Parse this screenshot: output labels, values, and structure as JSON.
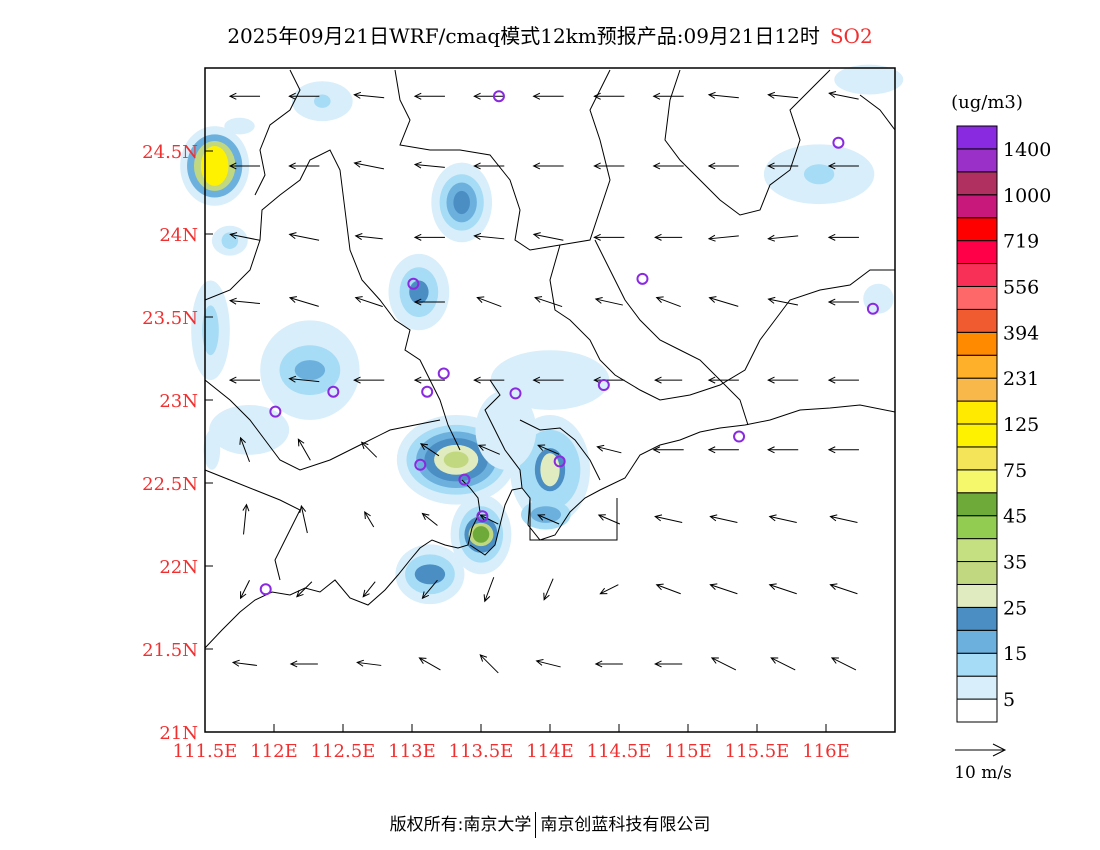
{
  "title": {
    "main": "2025年09月21日WRF/cmaq模式12km预报产品:09月21日12时",
    "species": "SO2"
  },
  "axes": {
    "x_ticks": [
      {
        "lon": 111.5,
        "label": "111.5E"
      },
      {
        "lon": 112,
        "label": "112E"
      },
      {
        "lon": 112.5,
        "label": "112.5E"
      },
      {
        "lon": 113,
        "label": "113E"
      },
      {
        "lon": 113.5,
        "label": "113.5E"
      },
      {
        "lon": 114,
        "label": "114E"
      },
      {
        "lon": 114.5,
        "label": "114.5E"
      },
      {
        "lon": 115,
        "label": "115E"
      },
      {
        "lon": 115.5,
        "label": "115.5E"
      },
      {
        "lon": 116,
        "label": "116E"
      }
    ],
    "y_ticks": [
      {
        "lat": 21,
        "label": "21N"
      },
      {
        "lat": 21.5,
        "label": "21.5N"
      },
      {
        "lat": 22,
        "label": "22N"
      },
      {
        "lat": 22.5,
        "label": "22.5N"
      },
      {
        "lat": 23,
        "label": "23N"
      },
      {
        "lat": 23.5,
        "label": "23.5N"
      },
      {
        "lat": 24,
        "label": "24N"
      },
      {
        "lat": 24.5,
        "label": "24.5N"
      }
    ],
    "lon_range": [
      111.5,
      116.5
    ],
    "lat_range": [
      21,
      25
    ],
    "tick_color": "#f03030"
  },
  "colorbar": {
    "unit": "(ug/m3)",
    "colors": [
      "#ffffff",
      "#d8eefa",
      "#a6dcf5",
      "#6cb0de",
      "#4a8ec4",
      "#e0ebc0",
      "#c2d880",
      "#c4e080",
      "#92cc50",
      "#6eaa3a",
      "#f4f86a",
      "#f4e45a",
      "#fff200",
      "#ffea00",
      "#f8b84a",
      "#ffb02a",
      "#ff8a00",
      "#f05c30",
      "#ff6868",
      "#f83058",
      "#ff0048",
      "#ff0000",
      "#c8187c",
      "#b03060",
      "#9a30c8",
      "#8a2ae0"
    ],
    "labels": [
      "5",
      "15",
      "25",
      "35",
      "45",
      "75",
      "125",
      "231",
      "394",
      "556",
      "719",
      "1000",
      "1400"
    ]
  },
  "wind_legend": {
    "label": "10 m/s"
  },
  "city_color": "#8a2ae0",
  "cities": [
    [
      113.63,
      24.83
    ],
    [
      116.09,
      24.55
    ],
    [
      114.67,
      23.73
    ],
    [
      116.34,
      23.55
    ],
    [
      113.01,
      23.7
    ],
    [
      113.23,
      23.16
    ],
    [
      113.11,
      23.05
    ],
    [
      113.75,
      23.04
    ],
    [
      114.39,
      23.09
    ],
    [
      112.43,
      23.05
    ],
    [
      112.01,
      22.93
    ],
    [
      113.06,
      22.61
    ],
    [
      113.38,
      22.52
    ],
    [
      114.07,
      22.63
    ],
    [
      113.51,
      22.3
    ],
    [
      115.37,
      22.78
    ],
    [
      111.94,
      21.86
    ]
  ],
  "so2_field": [
    {
      "lon": 111.57,
      "lat": 24.41,
      "levels": [
        [
          0.25,
          0.24,
          1
        ],
        [
          0.2,
          0.19,
          3
        ],
        [
          0.15,
          0.15,
          6
        ],
        [
          0.1,
          0.12,
          12
        ]
      ]
    },
    {
      "lon": 113.36,
      "lat": 24.19,
      "levels": [
        [
          0.22,
          0.24,
          1
        ],
        [
          0.16,
          0.17,
          2
        ],
        [
          0.11,
          0.12,
          3
        ],
        [
          0.06,
          0.07,
          4
        ]
      ]
    },
    {
      "lon": 113.05,
      "lat": 23.65,
      "levels": [
        [
          0.22,
          0.23,
          1
        ],
        [
          0.14,
          0.15,
          2
        ],
        [
          0.07,
          0.07,
          4
        ]
      ]
    },
    {
      "lon": 112.26,
      "lat": 23.18,
      "levels": [
        [
          0.36,
          0.3,
          1
        ],
        [
          0.22,
          0.15,
          2
        ],
        [
          0.11,
          0.06,
          3
        ]
      ]
    },
    {
      "lon": 113.32,
      "lat": 22.64,
      "levels": [
        [
          0.43,
          0.27,
          1
        ],
        [
          0.36,
          0.21,
          2
        ],
        [
          0.29,
          0.17,
          3
        ],
        [
          0.23,
          0.13,
          4
        ],
        [
          0.16,
          0.09,
          5
        ],
        [
          0.09,
          0.05,
          6
        ]
      ]
    },
    {
      "lon": 113.5,
      "lat": 22.19,
      "levels": [
        [
          0.22,
          0.24,
          1
        ],
        [
          0.16,
          0.17,
          2
        ],
        [
          0.12,
          0.11,
          4
        ],
        [
          0.09,
          0.07,
          6
        ],
        [
          0.06,
          0.05,
          9
        ]
      ]
    },
    {
      "lon": 114.0,
      "lat": 22.58,
      "levels": [
        [
          0.29,
          0.33,
          1
        ],
        [
          0.22,
          0.24,
          2
        ],
        [
          0.11,
          0.13,
          4
        ],
        [
          0.07,
          0.1,
          5
        ]
      ]
    },
    {
      "lon": 113.97,
      "lat": 22.31,
      "levels": [
        [
          0.18,
          0.09,
          2
        ],
        [
          0.11,
          0.05,
          3
        ]
      ]
    },
    {
      "lon": 113.13,
      "lat": 21.95,
      "levels": [
        [
          0.25,
          0.18,
          1
        ],
        [
          0.18,
          0.12,
          2
        ],
        [
          0.11,
          0.06,
          4
        ]
      ]
    },
    {
      "lon": 112.35,
      "lat": 24.8,
      "levels": [
        [
          0.22,
          0.12,
          1
        ],
        [
          0.06,
          0.04,
          2
        ]
      ]
    },
    {
      "lon": 111.75,
      "lat": 24.65,
      "levels": [
        [
          0.11,
          0.05,
          1
        ]
      ]
    },
    {
      "lon": 111.68,
      "lat": 23.96,
      "levels": [
        [
          0.13,
          0.09,
          1
        ],
        [
          0.06,
          0.05,
          2
        ]
      ]
    },
    {
      "lon": 111.54,
      "lat": 23.42,
      "levels": [
        [
          0.14,
          0.3,
          1
        ],
        [
          0.06,
          0.15,
          2
        ]
      ]
    },
    {
      "lon": 115.95,
      "lat": 24.36,
      "levels": [
        [
          0.4,
          0.18,
          1
        ],
        [
          0.11,
          0.06,
          2
        ]
      ]
    },
    {
      "lon": 116.31,
      "lat": 24.93,
      "levels": [
        [
          0.25,
          0.09,
          1
        ]
      ]
    },
    {
      "lon": 116.38,
      "lat": 23.61,
      "levels": [
        [
          0.11,
          0.09,
          1
        ]
      ]
    },
    {
      "lon": 111.82,
      "lat": 22.82,
      "levels": [
        [
          0.29,
          0.15,
          1
        ]
      ]
    },
    {
      "lon": 114.0,
      "lat": 23.12,
      "levels": [
        [
          0.43,
          0.18,
          1
        ]
      ]
    },
    {
      "lon": 113.68,
      "lat": 22.82,
      "levels": [
        [
          0.22,
          0.24,
          1
        ]
      ]
    },
    {
      "lon": 111.55,
      "lat": 22.7,
      "levels": [
        [
          0.06,
          0.12,
          1
        ]
      ]
    }
  ],
  "wind": {
    "lons": [
      111.79,
      112.22,
      112.69,
      113.13,
      113.56,
      113.99,
      114.43,
      114.86,
      115.26,
      115.69,
      116.13
    ],
    "lats": [
      24.83,
      24.41,
      23.98,
      23.59,
      23.12,
      22.7,
      22.28,
      21.86,
      21.41
    ],
    "u": [
      [
        -1,
        -1,
        -1,
        -1,
        -1,
        -1,
        -1,
        -1,
        -1,
        -1,
        -1
      ],
      [
        -1,
        -1,
        -1,
        -1,
        -1,
        -1,
        -1,
        -1,
        -1,
        -1,
        -1
      ],
      [
        -1,
        -1,
        -0.9,
        -1,
        -1,
        -1,
        -1,
        -0.9,
        -1,
        -1,
        -1
      ],
      [
        -1,
        -1,
        -0.9,
        -1,
        -0.8,
        -0.9,
        -0.9,
        -0.8,
        -1,
        -1,
        -1
      ],
      [
        -1,
        -1,
        -1,
        -1,
        -1,
        -1,
        -1,
        -0.9,
        -1,
        -1,
        -1
      ],
      [
        -0.3,
        -0.4,
        -0.5,
        -0.6,
        -0.7,
        -0.7,
        -0.8,
        -1,
        -1,
        -1,
        -1
      ],
      [
        0.1,
        -0.2,
        -0.3,
        -0.5,
        -0.6,
        -0.7,
        -0.7,
        -0.9,
        -0.9,
        -0.9,
        -0.9
      ],
      [
        -0.3,
        -0.5,
        -0.4,
        -0.5,
        -0.3,
        -0.3,
        -0.6,
        -0.8,
        -0.9,
        -0.9,
        -0.9
      ],
      [
        -0.8,
        -0.9,
        -0.8,
        -0.7,
        -0.6,
        -0.8,
        -0.9,
        -0.9,
        -0.8,
        -0.8,
        -0.8
      ]
    ],
    "v": [
      [
        0,
        0,
        0.1,
        0,
        0,
        0,
        0,
        0,
        0.1,
        0.1,
        0.2
      ],
      [
        0,
        0,
        0.2,
        0.1,
        0,
        0,
        0,
        0,
        0,
        0,
        0
      ],
      [
        0.2,
        0.2,
        0.1,
        0,
        0.1,
        0.2,
        0,
        0,
        -0.1,
        -0.1,
        0
      ],
      [
        0.1,
        0.3,
        0.3,
        0,
        0.3,
        0.3,
        0.2,
        0.3,
        0.3,
        0.2,
        0
      ],
      [
        0,
        0.1,
        0,
        0,
        0,
        0,
        0,
        0,
        0,
        0,
        0
      ],
      [
        0.8,
        0.7,
        0.5,
        0.4,
        0.3,
        0.3,
        0.2,
        0,
        0,
        0,
        0
      ],
      [
        1,
        0.9,
        0.5,
        0.4,
        0.3,
        0.3,
        0.3,
        0.2,
        0.2,
        0.2,
        0.2
      ],
      [
        -0.6,
        -0.5,
        -0.5,
        -0.6,
        -0.8,
        -0.7,
        -0.3,
        0.3,
        0.3,
        0.3,
        0.3
      ],
      [
        0.1,
        0,
        0.1,
        0.4,
        0.6,
        0.2,
        0,
        0,
        0.4,
        0.4,
        0.4
      ]
    ]
  },
  "footer": {
    "left": "版权所有:南京大学",
    "right": "南京创蓝科技有限公司"
  }
}
